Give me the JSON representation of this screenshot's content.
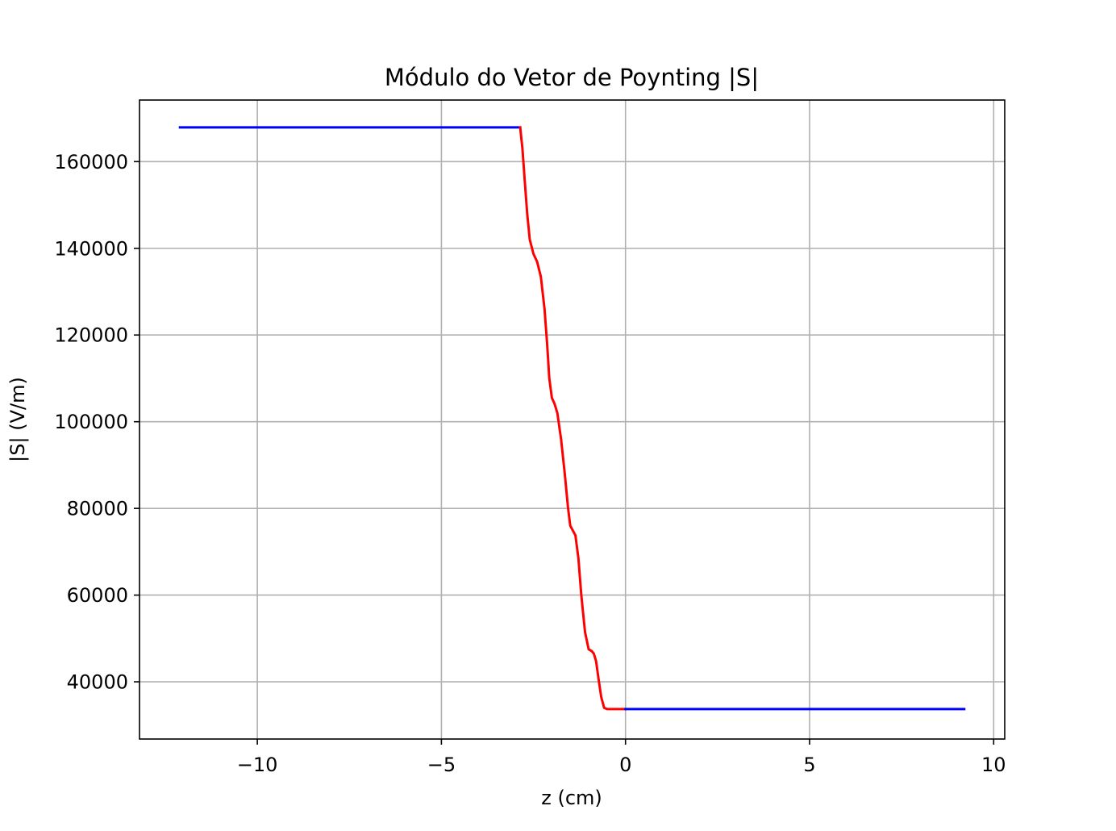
{
  "chart_data": {
    "type": "line",
    "title": "Módulo do Vetor de Poynting |S|",
    "xlabel": "z  (cm)",
    "ylabel": "|S|  (V/m)",
    "xlim": [
      -13.2,
      10.3
    ],
    "ylim": [
      26800,
      174200
    ],
    "xticks": [
      -10,
      -5,
      0,
      5,
      10
    ],
    "xtick_labels": [
      "−10",
      "−5",
      "0",
      "5",
      "10"
    ],
    "yticks": [
      40000,
      60000,
      80000,
      100000,
      120000,
      140000,
      160000
    ],
    "ytick_labels": [
      "40000",
      "60000",
      "80000",
      "100000",
      "120000",
      "140000",
      "160000"
    ],
    "grid": true,
    "series": [
      {
        "color": "#0000ff",
        "x": [
          -12.1,
          -2.86
        ],
        "y": [
          167900,
          167900
        ]
      },
      {
        "color": "#ff0000",
        "x": [
          -2.86,
          -2.8,
          -2.74,
          -2.67,
          -2.6,
          -2.5,
          -2.4,
          -2.3,
          -2.2,
          -2.13,
          -2.07,
          -2.0,
          -1.93,
          -1.85,
          -1.75,
          -1.65,
          -1.56,
          -1.5,
          -1.43,
          -1.36,
          -1.28,
          -1.2,
          -1.1,
          -1.0,
          -0.92,
          -0.86,
          -0.8,
          -0.73,
          -0.66,
          -0.58,
          -0.5,
          -0.4,
          -0.3,
          -0.22,
          -0.15,
          -0.08,
          0.0
        ],
        "y": [
          167900,
          163000,
          156000,
          148000,
          142000,
          138700,
          136900,
          133500,
          126000,
          118000,
          110000,
          105500,
          104200,
          102000,
          96000,
          88000,
          80000,
          76000,
          74900,
          73800,
          68500,
          60000,
          51500,
          47500,
          47100,
          46500,
          44800,
          40500,
          36500,
          34000,
          33700,
          33700,
          33700,
          33700,
          33700,
          33700,
          33700
        ]
      },
      {
        "color": "#0000ff",
        "x": [
          0.0,
          9.2
        ],
        "y": [
          33700,
          33700
        ]
      }
    ]
  }
}
